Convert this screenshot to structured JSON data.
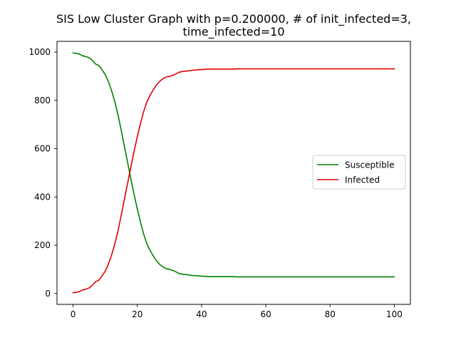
{
  "chart_data": {
    "type": "line",
    "title_lines": [
      "SIS Low Cluster Graph with p=0.200000, # of init_infected=3,",
      "time_infected=10"
    ],
    "xlabel": "",
    "ylabel": "",
    "xlim": [
      -5,
      105
    ],
    "ylim": [
      -45,
      1045
    ],
    "x_ticks": [
      0,
      20,
      40,
      60,
      80,
      100
    ],
    "y_ticks": [
      0,
      200,
      400,
      600,
      800,
      1000
    ],
    "grid": false,
    "legend_position": "center-right",
    "x": [
      0,
      1,
      2,
      3,
      4,
      5,
      6,
      7,
      8,
      9,
      10,
      11,
      12,
      13,
      14,
      15,
      16,
      17,
      18,
      19,
      20,
      21,
      22,
      23,
      24,
      25,
      26,
      27,
      28,
      29,
      30,
      31,
      32,
      33,
      34,
      35,
      36,
      37,
      38,
      39,
      40,
      41,
      42,
      43,
      44,
      45,
      46,
      47,
      48,
      49,
      50,
      51,
      52,
      53,
      54,
      55,
      56,
      57,
      58,
      59,
      60,
      61,
      62,
      63,
      64,
      65,
      66,
      67,
      68,
      69,
      70,
      71,
      72,
      73,
      74,
      75,
      76,
      77,
      78,
      79,
      80,
      81,
      82,
      83,
      84,
      85,
      86,
      87,
      88,
      89,
      90,
      91,
      92,
      93,
      94,
      95,
      96,
      97,
      98,
      99,
      100
    ],
    "series": [
      {
        "name": "Susceptible",
        "color": "#008000",
        "values": [
          997,
          995,
          992,
          985,
          982,
          977,
          966,
          951,
          945,
          927,
          908,
          878,
          840,
          795,
          740,
          675,
          608,
          542,
          475,
          410,
          350,
          295,
          245,
          205,
          178,
          155,
          135,
          120,
          110,
          103,
          100,
          96,
          90,
          83,
          80,
          79,
          77,
          75,
          74,
          73,
          72,
          71,
          70,
          70,
          70,
          70,
          70,
          70,
          70,
          70,
          70,
          69,
          69,
          69,
          69,
          69,
          69,
          69,
          69,
          69,
          69,
          69,
          69,
          69,
          69,
          69,
          69,
          69,
          69,
          69,
          69,
          69,
          69,
          69,
          69,
          69,
          69,
          69,
          69,
          69,
          69,
          69,
          69,
          69,
          69,
          69,
          69,
          69,
          69,
          69,
          69,
          69,
          69,
          69,
          69,
          69,
          69,
          69,
          69,
          69,
          69
        ]
      },
      {
        "name": "Infected",
        "color": "#e00000",
        "values": [
          3,
          5,
          8,
          15,
          18,
          23,
          34,
          49,
          55,
          73,
          92,
          122,
          160,
          205,
          260,
          325,
          392,
          458,
          525,
          590,
          650,
          705,
          755,
          795,
          822,
          845,
          865,
          880,
          890,
          897,
          900,
          904,
          910,
          917,
          920,
          921,
          923,
          925,
          926,
          927,
          928,
          929,
          930,
          930,
          930,
          930,
          930,
          930,
          930,
          930,
          930,
          931,
          931,
          931,
          931,
          931,
          931,
          931,
          931,
          931,
          931,
          931,
          931,
          931,
          931,
          931,
          931,
          931,
          931,
          931,
          931,
          931,
          931,
          931,
          931,
          931,
          931,
          931,
          931,
          931,
          931,
          931,
          931,
          931,
          931,
          931,
          931,
          931,
          931,
          931,
          931,
          931,
          931,
          931,
          931,
          931,
          931,
          931,
          931,
          931,
          931
        ]
      }
    ]
  }
}
